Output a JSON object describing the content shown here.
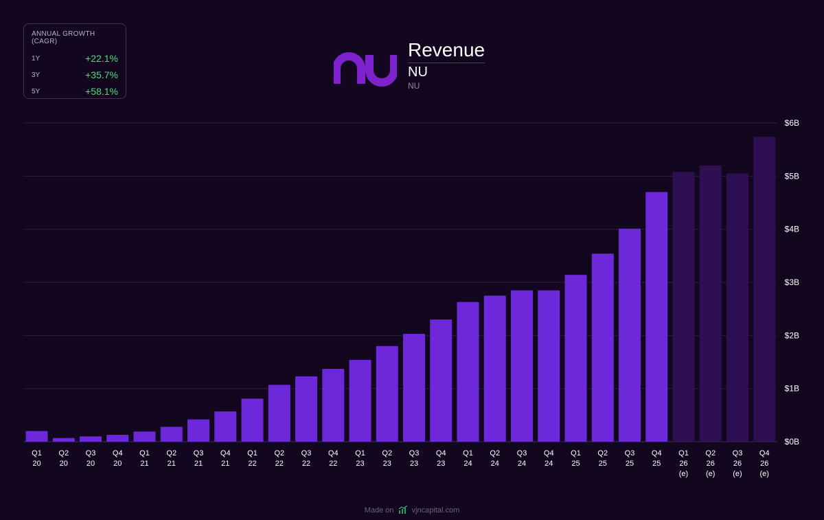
{
  "cagr": {
    "title": "ANNUAL GROWTH (CAGR)",
    "rows": [
      {
        "period": "1Y",
        "value": "+22.1%"
      },
      {
        "period": "3Y",
        "value": "+35.7%"
      },
      {
        "period": "5Y",
        "value": "+58.1%"
      }
    ]
  },
  "header": {
    "title": "Revenue",
    "ticker": "NU",
    "ticker_sub": "NU"
  },
  "logo_icon": "nu-logo-icon",
  "footer": {
    "made_on": "Made on",
    "site": "vjncapital.com",
    "icon": "chart-trend-icon"
  },
  "colors": {
    "actual_bar": "#6d28d9",
    "estimate_bar": "#2e0f52",
    "background": "#12071f",
    "positive": "#4ade80",
    "brand": "#7e22ce"
  },
  "chart_data": {
    "type": "bar",
    "title": "Revenue",
    "categories": [
      [
        "Q1",
        "20"
      ],
      [
        "Q2",
        "20"
      ],
      [
        "Q3",
        "20"
      ],
      [
        "Q4",
        "20"
      ],
      [
        "Q1",
        "21"
      ],
      [
        "Q2",
        "21"
      ],
      [
        "Q3",
        "21"
      ],
      [
        "Q4",
        "21"
      ],
      [
        "Q1",
        "22"
      ],
      [
        "Q2",
        "22"
      ],
      [
        "Q3",
        "22"
      ],
      [
        "Q4",
        "22"
      ],
      [
        "Q1",
        "23"
      ],
      [
        "Q2",
        "23"
      ],
      [
        "Q3",
        "23"
      ],
      [
        "Q4",
        "23"
      ],
      [
        "Q1",
        "24"
      ],
      [
        "Q2",
        "24"
      ],
      [
        "Q3",
        "24"
      ],
      [
        "Q4",
        "24"
      ],
      [
        "Q1",
        "25"
      ],
      [
        "Q2",
        "25"
      ],
      [
        "Q3",
        "25"
      ],
      [
        "Q4",
        "25"
      ],
      [
        "Q1",
        "26",
        "(e)"
      ],
      [
        "Q2",
        "26",
        "(e)"
      ],
      [
        "Q3",
        "26",
        "(e)"
      ],
      [
        "Q4",
        "26",
        "(e)"
      ]
    ],
    "values": [
      0.2,
      0.07,
      0.1,
      0.13,
      0.19,
      0.28,
      0.42,
      0.57,
      0.81,
      1.07,
      1.23,
      1.37,
      1.54,
      1.8,
      2.03,
      2.3,
      2.63,
      2.75,
      2.85,
      2.85,
      3.14,
      3.54,
      4.01,
      4.7,
      5.08,
      5.2,
      5.05,
      5.74
    ],
    "estimate": [
      false,
      false,
      false,
      false,
      false,
      false,
      false,
      false,
      false,
      false,
      false,
      false,
      false,
      false,
      false,
      false,
      false,
      false,
      false,
      false,
      false,
      false,
      false,
      false,
      true,
      true,
      true,
      true
    ],
    "unit": "$B",
    "yticks": [
      0,
      1,
      2,
      3,
      4,
      5,
      6
    ],
    "ytick_labels": [
      "$0B",
      "$1B",
      "$2B",
      "$3B",
      "$4B",
      "$5B",
      "$6B"
    ],
    "ylim": [
      0,
      6
    ],
    "grid": true,
    "xlabel": "",
    "ylabel": ""
  }
}
